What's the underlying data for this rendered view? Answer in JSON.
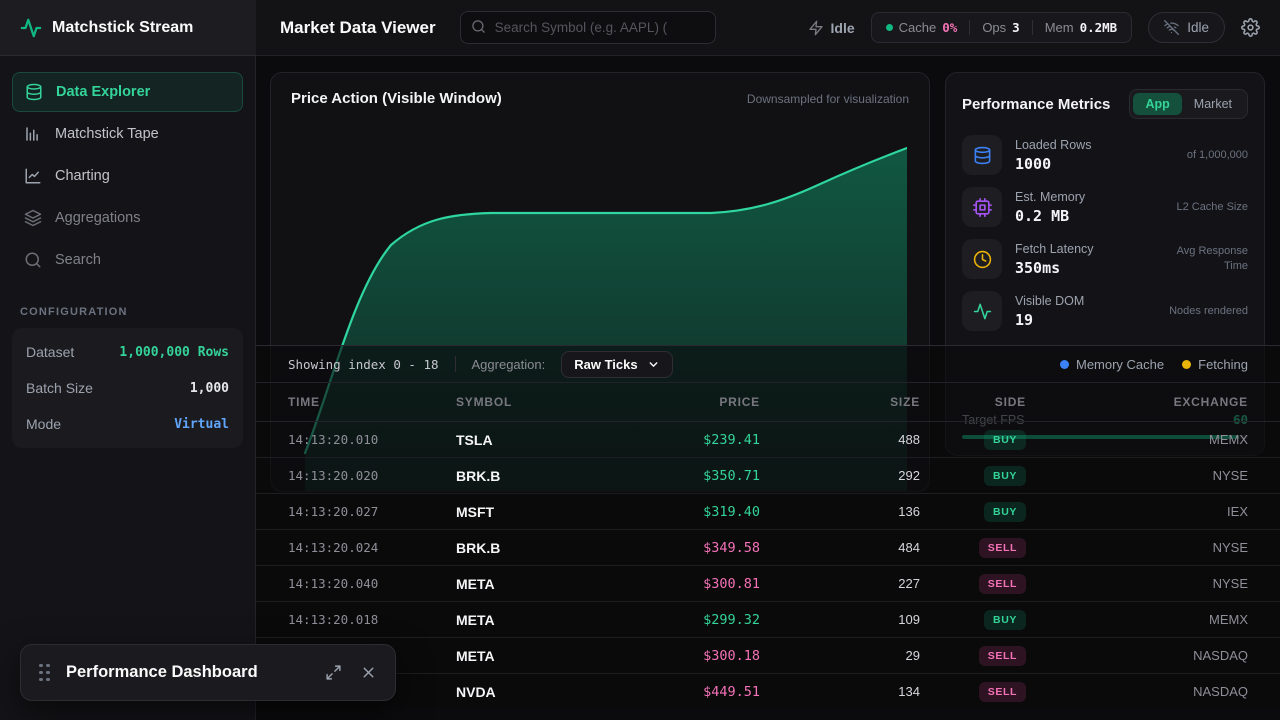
{
  "brand": {
    "name": "Matchstick Stream"
  },
  "header": {
    "title": "Market Data Viewer",
    "search_placeholder": "Search Symbol (e.g. AAPL) (",
    "stream_status": "Idle",
    "stats": {
      "cache_label": "Cache",
      "cache_value": "0%",
      "ops_label": "Ops",
      "ops_value": "3",
      "mem_label": "Mem",
      "mem_value": "0.2MB"
    },
    "connection_status": "Idle"
  },
  "sidebar": {
    "items": [
      {
        "label": "Data Explorer",
        "active": true
      },
      {
        "label": "Matchstick Tape",
        "active": false
      },
      {
        "label": "Charting",
        "active": false
      },
      {
        "label": "Aggregations",
        "active": false
      },
      {
        "label": "Search",
        "active": false
      }
    ],
    "config": {
      "heading": "CONFIGURATION",
      "rows": [
        {
          "label": "Dataset",
          "value": "1,000,000 Rows",
          "color": "green"
        },
        {
          "label": "Batch Size",
          "value": "1,000",
          "color": "white"
        },
        {
          "label": "Mode",
          "value": "Virtual",
          "color": "blue"
        }
      ]
    }
  },
  "chart": {
    "title": "Price Action (Visible Window)",
    "note": "Downsampled for visualization"
  },
  "metrics": {
    "title": "Performance Metrics",
    "tabs": [
      {
        "label": "App",
        "active": true
      },
      {
        "label": "Market",
        "active": false
      }
    ],
    "items": [
      {
        "label": "Loaded Rows",
        "value": "1000",
        "note": "of 1,000,000",
        "icon": "database-icon",
        "color": "#3b82f6"
      },
      {
        "label": "Est. Memory",
        "value": "0.2 MB",
        "note": "L2 Cache Size",
        "icon": "cpu-icon",
        "color": "#a855f7"
      },
      {
        "label": "Fetch Latency",
        "value": "350ms",
        "note": "Avg Response Time",
        "icon": "clock-icon",
        "color": "#eab308"
      },
      {
        "label": "Visible DOM",
        "value": "19",
        "note": "Nodes rendered",
        "icon": "activity-icon",
        "color": "#34d399"
      }
    ],
    "fps": {
      "label": "Target FPS",
      "value": "60",
      "progress": 97
    }
  },
  "table": {
    "showing": "Showing index 0 - 18",
    "aggregation_label": "Aggregation:",
    "aggregation_value": "Raw Ticks",
    "legend": [
      {
        "label": "Memory Cache",
        "color": "#3b82f6"
      },
      {
        "label": "Fetching",
        "color": "#eab308"
      }
    ],
    "columns": [
      "TIME",
      "SYMBOL",
      "PRICE",
      "SIZE",
      "SIDE",
      "EXCHANGE"
    ],
    "rows": [
      {
        "time": "14:13:20.010",
        "symbol": "TSLA",
        "price": "$239.41",
        "direction": "up",
        "size": "488",
        "side": "BUY",
        "exchange": "MEMX"
      },
      {
        "time": "14:13:20.020",
        "symbol": "BRK.B",
        "price": "$350.71",
        "direction": "up",
        "size": "292",
        "side": "BUY",
        "exchange": "NYSE"
      },
      {
        "time": "14:13:20.027",
        "symbol": "MSFT",
        "price": "$319.40",
        "direction": "up",
        "size": "136",
        "side": "BUY",
        "exchange": "IEX"
      },
      {
        "time": "14:13:20.024",
        "symbol": "BRK.B",
        "price": "$349.58",
        "direction": "down",
        "size": "484",
        "side": "SELL",
        "exchange": "NYSE"
      },
      {
        "time": "14:13:20.040",
        "symbol": "META",
        "price": "$300.81",
        "direction": "down",
        "size": "227",
        "side": "SELL",
        "exchange": "NYSE"
      },
      {
        "time": "14:13:20.018",
        "symbol": "META",
        "price": "$299.32",
        "direction": "up",
        "size": "109",
        "side": "BUY",
        "exchange": "MEMX"
      },
      {
        "time": "",
        "symbol": "META",
        "price": "$300.18",
        "direction": "down",
        "size": "29",
        "side": "SELL",
        "exchange": "NASDAQ"
      },
      {
        "time": "",
        "symbol": "NVDA",
        "price": "$449.51",
        "direction": "down",
        "size": "134",
        "side": "SELL",
        "exchange": "NASDAQ"
      }
    ]
  },
  "popup": {
    "title": "Performance Dashboard"
  },
  "colors": {
    "accent": "#34d399",
    "up": "#34d399",
    "down": "#f472b6",
    "blue": "#3b82f6",
    "yellow": "#eab308",
    "purple": "#a855f7",
    "buy_green": "#10b981"
  }
}
